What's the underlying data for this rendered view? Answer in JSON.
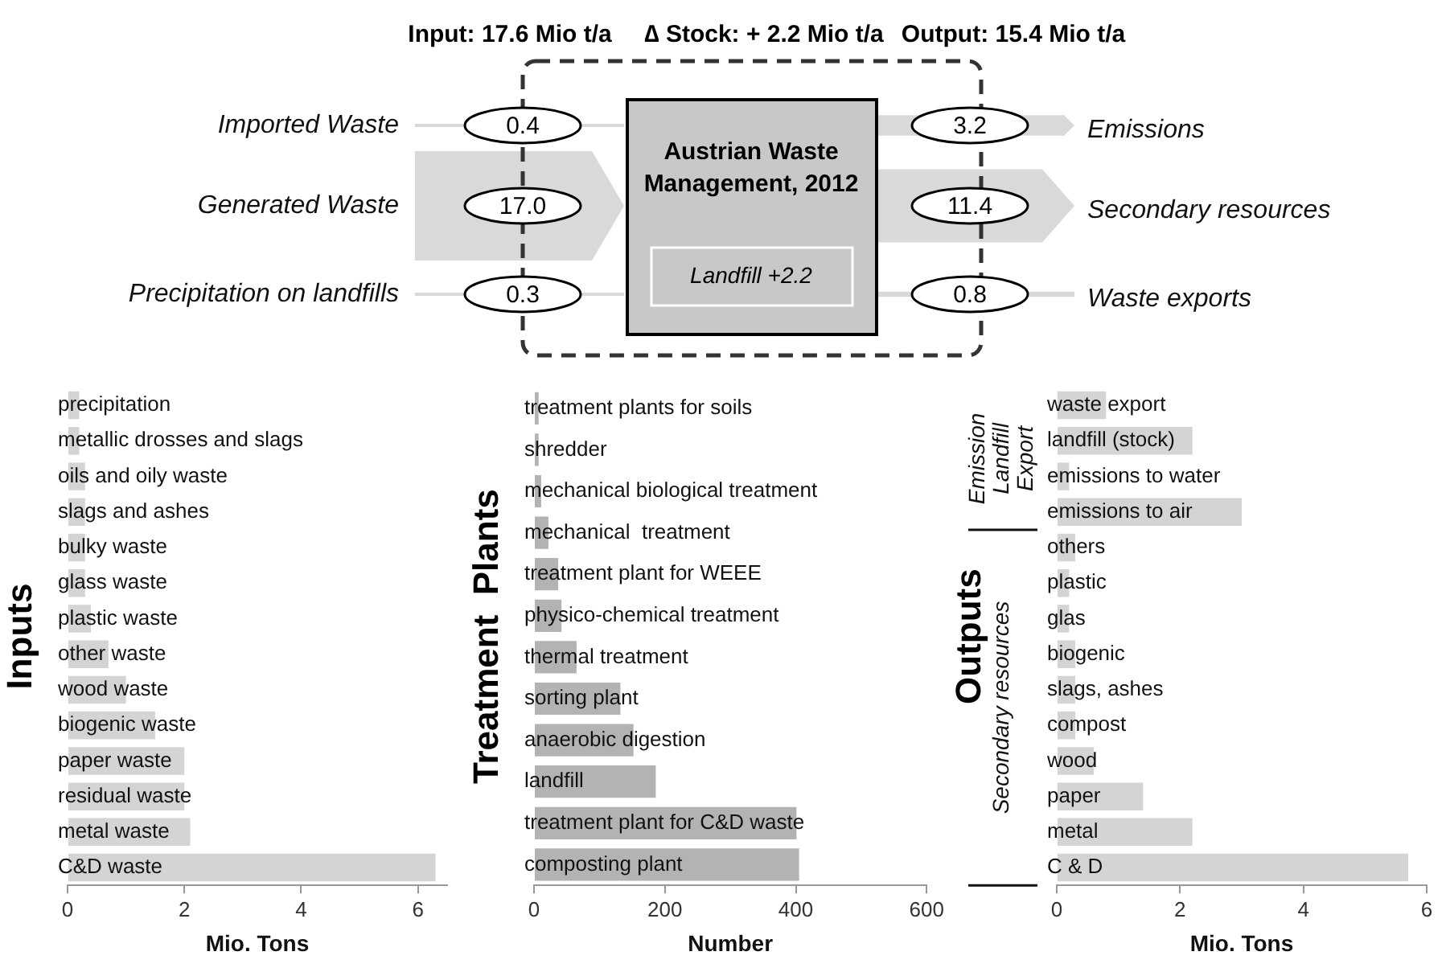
{
  "chart_data": [
    {
      "type": "other",
      "title": "Austrian Waste Management, 2012",
      "categories": [
        "Imported Waste",
        "Generated Waste",
        "Precipitation on landfills",
        "Emissions",
        "Secondary resources",
        "Waste exports"
      ],
      "values": [
        0.4,
        17.0,
        0.3,
        3.2,
        11.4,
        0.8
      ],
      "value_labels": [
        "0.4",
        "17.0",
        "0.3",
        "3.2",
        "11.4",
        "0.8"
      ],
      "annotations": [
        "Input: 17.6 Mio t/a",
        "∆ Stock: + 2.2 Mio t/a",
        "Output: 15.4 Mio t/a",
        "Landfill +2.2"
      ]
    },
    {
      "type": "bar",
      "orientation": "horizontal",
      "ylabel": "Inputs",
      "xlabel": "Mio. Tons",
      "color": "#d4d4d4",
      "categories": [
        "precipitation",
        "metallic drosses and slags",
        "oils and oily waste",
        "slags and ashes",
        "bulky waste",
        "glass waste",
        "plastic waste",
        "other waste",
        "wood waste",
        "biogenic waste",
        "paper waste",
        "residual waste",
        "metal waste",
        "C&D waste"
      ],
      "values": [
        0.2,
        0.2,
        0.3,
        0.3,
        0.3,
        0.3,
        0.4,
        0.7,
        1.0,
        1.5,
        2.0,
        2.0,
        2.1,
        6.3
      ],
      "xlim": [
        0,
        6.5
      ],
      "xticks": [
        0,
        2,
        4,
        6
      ],
      "grid": false,
      "legend": false
    },
    {
      "type": "bar",
      "orientation": "horizontal",
      "ylabel": "Treatment  Plants",
      "xlabel": "Number",
      "color": "#b3b3b3",
      "categories": [
        "treatment plants for soils",
        "shredder",
        "mechanical biological treatment",
        "mechanical  treatment",
        "treatment plant for WEEE",
        "physico-chemical treatment",
        "thermal treatment",
        "sorting plant",
        "anaerobic digestion",
        "landfill",
        "treatment plant for C&D waste",
        "composting plant"
      ],
      "values": [
        7,
        7,
        11,
        22,
        37,
        42,
        65,
        132,
        152,
        186,
        401,
        405
      ],
      "xlim": [
        0,
        600
      ],
      "xticks": [
        0,
        200,
        400,
        600
      ],
      "grid": false,
      "legend": false
    },
    {
      "type": "bar",
      "orientation": "horizontal",
      "ylabel": "Outputs",
      "xlabel": "Mio. Tons",
      "color": "#d4d4d4",
      "categories": [
        "waste export",
        "landfill (stock)",
        "emissions to water",
        "emissions to air",
        "others",
        "plastic",
        "glas",
        "biogenic",
        "slags, ashes",
        "compost",
        "wood",
        "paper",
        "metal",
        "C & D"
      ],
      "values": [
        0.8,
        2.2,
        0.2,
        3.0,
        0.3,
        0.2,
        0.2,
        0.3,
        0.3,
        0.3,
        0.6,
        1.4,
        2.2,
        5.7
      ],
      "xlim": [
        0,
        6
      ],
      "xticks": [
        0,
        2,
        4,
        6
      ],
      "grid": false,
      "legend": false,
      "annotations": [
        "Emission Landfill Export",
        "Secondary resources"
      ]
    }
  ]
}
